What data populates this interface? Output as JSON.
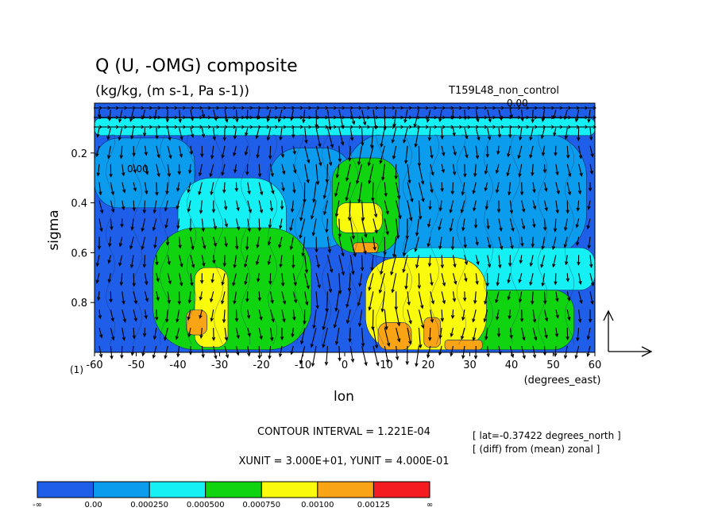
{
  "chart_data": {
    "type": "heatmap",
    "title": "Q (U, -OMG) composite",
    "units": "(kg/kg, (m s-1, Pa s-1))",
    "experiment": "T159L48_non_control",
    "xlabel": "lon",
    "xunits": "(degrees_east)",
    "ylabel": "sigma",
    "ybottom_label": "(1)",
    "xlim": [
      -60,
      60
    ],
    "ylim": [
      1.0,
      0.0
    ],
    "xticks": [
      "-60",
      "-50",
      "-40",
      "-30",
      "-20",
      "-10",
      "0",
      "10",
      "20",
      "30",
      "40",
      "50",
      "60"
    ],
    "yticks": [
      "0.2",
      "0.4",
      "0.6",
      "0.8"
    ],
    "grid": false,
    "contour_interval": "CONTOUR INTERVAL = 1.221E-04",
    "vector_units": "XUNIT = 3.000E+01, YUNIT = 4.000E-01",
    "notes": [
      "[ lat=-0.37422 degrees_north ]",
      "[ (diff) from (mean) zonal ]"
    ],
    "contour_labels": [
      "0.00",
      "0.00"
    ],
    "colorbar": {
      "labels": [
        "-∞",
        "0.00",
        "0.000250",
        "0.000500",
        "0.000750",
        "0.00100",
        "0.00125",
        "∞"
      ],
      "colors": [
        "#1e5ee8",
        "#0c9cee",
        "#14f0f4",
        "#10d410",
        "#fafa0c",
        "#f8a414",
        "#f41c20"
      ]
    },
    "regions": [
      {
        "level": 0,
        "x": [
          -60,
          -36
        ],
        "y": [
          0.14,
          0.42
        ]
      },
      {
        "level": 0,
        "x": [
          -18,
          2
        ],
        "y": [
          0.18,
          0.58
        ]
      },
      {
        "level": 0,
        "x": [
          0,
          58
        ],
        "y": [
          0.12,
          0.62
        ]
      },
      {
        "level": 1,
        "x": [
          -60,
          60
        ],
        "y": [
          0.06,
          0.13
        ]
      },
      {
        "level": 1,
        "x": [
          -40,
          -14
        ],
        "y": [
          0.3,
          0.68
        ]
      },
      {
        "level": 1,
        "x": [
          14,
          60
        ],
        "y": [
          0.58,
          0.75
        ]
      },
      {
        "level": 2,
        "x": [
          -46,
          -8
        ],
        "y": [
          0.5,
          0.99
        ]
      },
      {
        "level": 2,
        "x": [
          -3,
          13
        ],
        "y": [
          0.22,
          0.6
        ]
      },
      {
        "level": 2,
        "x": [
          18,
          55
        ],
        "y": [
          0.75,
          0.99
        ]
      },
      {
        "level": 3,
        "x": [
          -2,
          9
        ],
        "y": [
          0.4,
          0.52
        ]
      },
      {
        "level": 3,
        "x": [
          -36,
          -28
        ],
        "y": [
          0.66,
          0.98
        ]
      },
      {
        "level": 3,
        "x": [
          5,
          34
        ],
        "y": [
          0.62,
          0.99
        ]
      },
      {
        "level": 4,
        "x": [
          2,
          8
        ],
        "y": [
          0.56,
          0.6
        ]
      },
      {
        "level": 4,
        "x": [
          -38,
          -33
        ],
        "y": [
          0.83,
          0.93
        ]
      },
      {
        "level": 4,
        "x": [
          8,
          16
        ],
        "y": [
          0.88,
          0.99
        ]
      },
      {
        "level": 4,
        "x": [
          19,
          23
        ],
        "y": [
          0.86,
          0.98
        ]
      },
      {
        "level": 4,
        "x": [
          24,
          33
        ],
        "y": [
          0.95,
          0.99
        ]
      }
    ]
  }
}
